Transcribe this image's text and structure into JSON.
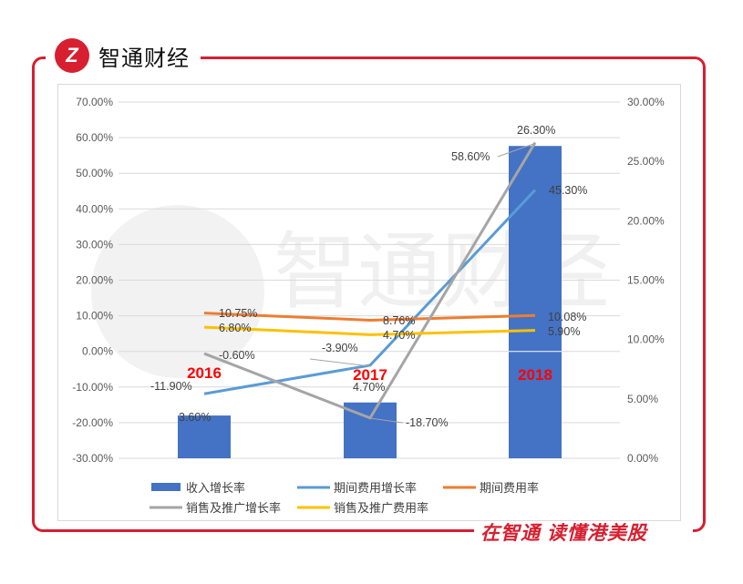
{
  "header": {
    "brand": "智通财经",
    "logo_letter": "Z"
  },
  "footer": {
    "slogan": "在智通 读懂港美股"
  },
  "watermark": "智通财经",
  "chart_data": {
    "type": "bar+line",
    "categories": [
      "2016",
      "2017",
      "2018"
    ],
    "left_axis": {
      "ticks": [
        "70.00%",
        "60.00%",
        "50.00%",
        "40.00%",
        "30.00%",
        "20.00%",
        "10.00%",
        "0.00%",
        "-10.00%",
        "-20.00%",
        "-30.00%"
      ],
      "range": [
        -30,
        70
      ]
    },
    "right_axis": {
      "ticks": [
        "30.00%",
        "25.00%",
        "20.00%",
        "15.00%",
        "10.00%",
        "5.00%",
        "0.00%"
      ],
      "range": [
        0,
        30
      ]
    },
    "series": [
      {
        "name": "收入增长率",
        "type": "bar",
        "axis": "right",
        "color": "#4472c4",
        "values": [
          3.6,
          4.7,
          26.3
        ],
        "labels": [
          "3.60%",
          "4.70%",
          "26.30%"
        ]
      },
      {
        "name": "期间费用增长率",
        "type": "line",
        "axis": "left",
        "color": "#5b9bd5",
        "values": [
          -11.9,
          -3.9,
          45.3
        ],
        "labels": [
          "-11.90%",
          "-3.90%",
          "45.30%"
        ]
      },
      {
        "name": "期间费用率",
        "type": "line",
        "axis": "left",
        "color": "#ed7d31",
        "values": [
          10.75,
          8.76,
          10.08
        ],
        "labels": [
          "10.75%",
          "8.76%",
          "10.08%"
        ]
      },
      {
        "name": "销售及推广增长率",
        "type": "line",
        "axis": "left",
        "color": "#a5a5a5",
        "values": [
          -0.6,
          -18.7,
          58.6
        ],
        "labels": [
          "-0.60%",
          "-18.70%",
          "58.60%"
        ]
      },
      {
        "name": "销售及推广费用率",
        "type": "line",
        "axis": "left",
        "color": "#ffc000",
        "values": [
          6.8,
          4.7,
          5.9
        ],
        "labels": [
          "6.80%",
          "4.70%",
          "5.90%"
        ]
      }
    ],
    "legend_position": "bottom",
    "grid": true
  }
}
